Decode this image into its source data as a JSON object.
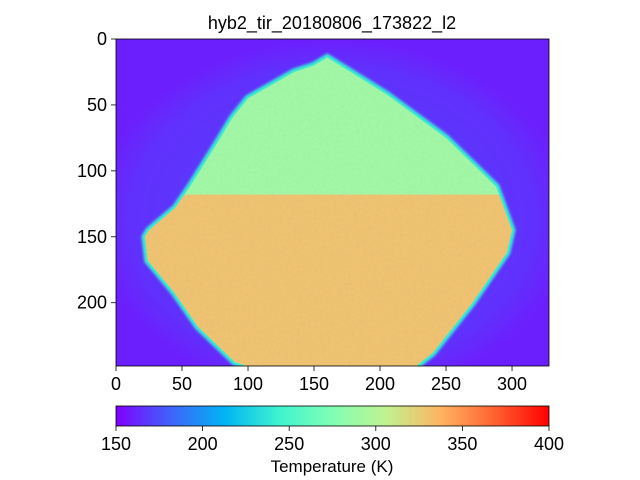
{
  "chart_data": {
    "type": "heatmap",
    "title": "hyb2_tir_20180806_173822_l2",
    "image_width": 328,
    "image_height": 248,
    "x_ticks": [
      0,
      50,
      100,
      150,
      200,
      250,
      300
    ],
    "y_ticks": [
      0,
      50,
      100,
      150,
      200
    ],
    "background_value": 160,
    "body_outline": [
      [
        160,
        14
      ],
      [
        205,
        42
      ],
      [
        250,
        75
      ],
      [
        288,
        112
      ],
      [
        300,
        145
      ],
      [
        296,
        162
      ],
      [
        270,
        200
      ],
      [
        240,
        238
      ],
      [
        225,
        250
      ],
      [
        105,
        250
      ],
      [
        90,
        245
      ],
      [
        62,
        218
      ],
      [
        44,
        192
      ],
      [
        24,
        168
      ],
      [
        22,
        150
      ],
      [
        25,
        145
      ],
      [
        45,
        128
      ],
      [
        56,
        112
      ],
      [
        76,
        80
      ],
      [
        88,
        60
      ],
      [
        100,
        45
      ],
      [
        135,
        25
      ],
      [
        150,
        20
      ]
    ],
    "body_upper_value": 290,
    "body_lower_value": 330,
    "body_transition_y": 118,
    "colorbar": {
      "label": "Temperature (K)",
      "vmin": 150,
      "vmax": 400,
      "ticks": [
        "150",
        "200",
        "250",
        "300",
        "350",
        "400"
      ],
      "colormap": "rainbow",
      "stops": [
        "#8000ff",
        "#4062fa",
        "#01b3f4",
        "#3ef3d0",
        "#80ffb4",
        "#c1f290",
        "#ffb360",
        "#ff6130",
        "#ff0000"
      ]
    }
  }
}
